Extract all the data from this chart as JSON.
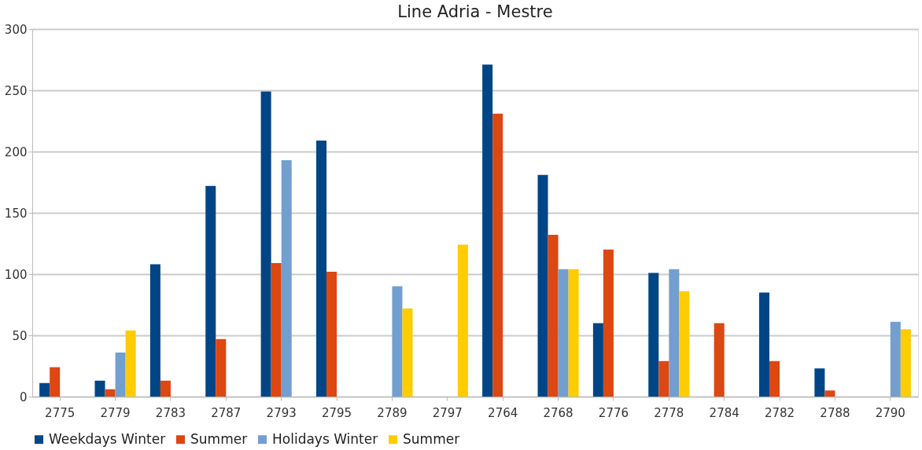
{
  "chart_data": {
    "type": "bar",
    "title": "Line Adria - Mestre",
    "categories": [
      "2775",
      "2779",
      "2783",
      "2787",
      "2793",
      "2795",
      "2789",
      "2797",
      "2764",
      "2768",
      "2776",
      "2778",
      "2784",
      "2782",
      "2788",
      "2790"
    ],
    "series": [
      {
        "name": "Weekdays Winter",
        "color": "#004586",
        "values": [
          11,
          13,
          108,
          172,
          249,
          209,
          null,
          null,
          271,
          181,
          60,
          101,
          null,
          85,
          23,
          null
        ]
      },
      {
        "name": "Summer",
        "color": "#dc4712",
        "values": [
          24,
          6,
          13,
          47,
          109,
          102,
          null,
          null,
          231,
          132,
          120,
          29,
          60,
          29,
          5,
          null
        ]
      },
      {
        "name": "Holidays Winter",
        "color": "#729fcf",
        "values": [
          null,
          36,
          null,
          null,
          193,
          null,
          90,
          null,
          null,
          104,
          null,
          104,
          null,
          null,
          null,
          61
        ]
      },
      {
        "name": "Summer",
        "color": "#ffcc00",
        "values": [
          null,
          54,
          null,
          null,
          null,
          null,
          72,
          124,
          null,
          104,
          null,
          86,
          null,
          null,
          null,
          55
        ]
      }
    ],
    "ylim": [
      0,
      300
    ],
    "yticks": [
      0,
      50,
      100,
      150,
      200,
      250,
      300
    ],
    "grid": "y",
    "legend": "bottom"
  }
}
